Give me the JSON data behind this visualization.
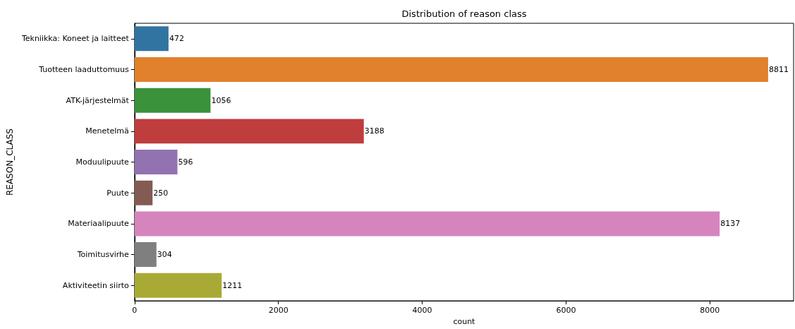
{
  "chart_data": {
    "type": "bar",
    "orientation": "horizontal",
    "title": "Distribution of reason class",
    "xlabel": "count",
    "ylabel": "REASON_CLASS",
    "categories": [
      "Tekniikka: Koneet ja laitteet",
      "Tuotteen laaduttomuus",
      "ATK-järjestelmät",
      "Menetelmä",
      "Moduulipuute",
      "Puute",
      "Materiaalipuute",
      "Toimitusvirhe",
      "Aktiviteetin siirto"
    ],
    "values": [
      472,
      8811,
      1056,
      3188,
      596,
      250,
      8137,
      304,
      1211
    ],
    "colors": [
      "#3274a1",
      "#e1812c",
      "#3a923a",
      "#c03d3e",
      "#9372b2",
      "#845b53",
      "#d684bd",
      "#7f7f7f",
      "#a9aa35"
    ],
    "xlim": [
      0,
      9165
    ],
    "xticks": [
      0,
      2000,
      4000,
      6000,
      8000
    ],
    "data_labels": true
  }
}
